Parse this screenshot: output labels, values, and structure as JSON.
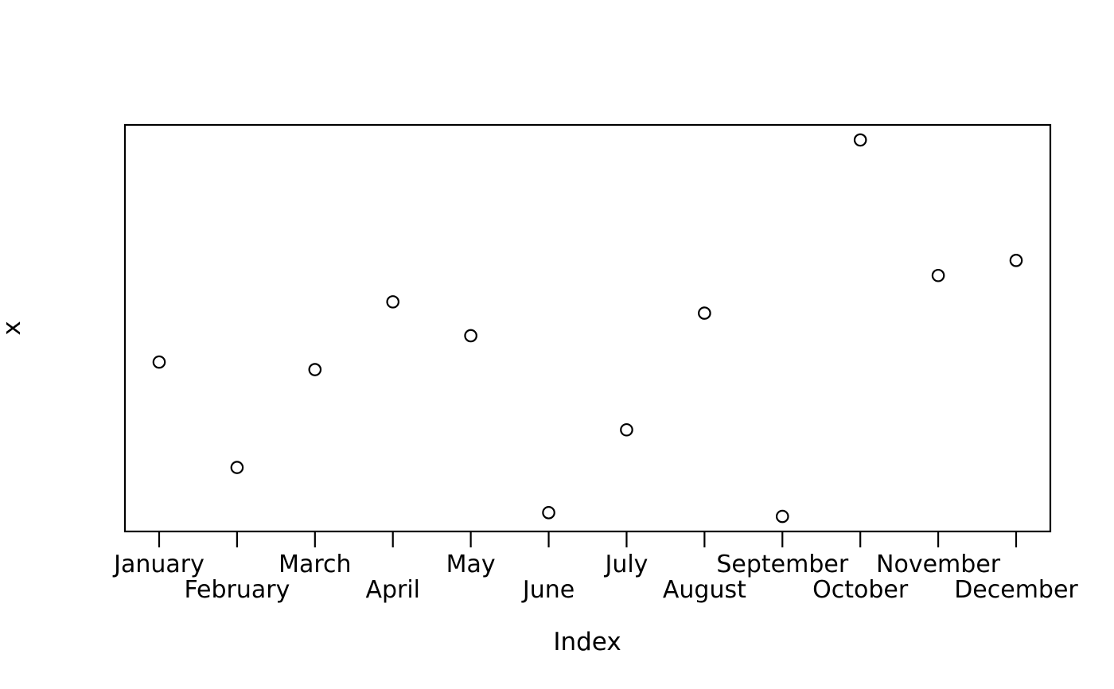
{
  "chart_data": {
    "type": "scatter",
    "title": "",
    "xlabel": "Index",
    "ylabel": "x",
    "categories": [
      "January",
      "February",
      "March",
      "April",
      "May",
      "June",
      "July",
      "August",
      "September",
      "October",
      "November",
      "December"
    ],
    "x": [
      1,
      2,
      3,
      4,
      5,
      6,
      7,
      8,
      9,
      10,
      11,
      12
    ],
    "values": [
      0.41,
      0.13,
      0.39,
      0.57,
      0.48,
      0.01,
      0.23,
      0.54,
      0.0,
      1.0,
      0.64,
      0.68
    ],
    "value_scale": "relative 0-1 (y-axis shows no numeric tick labels)",
    "ylim": [
      0,
      1
    ],
    "marker": "open-circle",
    "legend_position": "none",
    "grid": false,
    "x_tick_label_layout": "staggered-two-rows",
    "colors": {
      "foreground": "#000000",
      "background": "#ffffff"
    }
  }
}
